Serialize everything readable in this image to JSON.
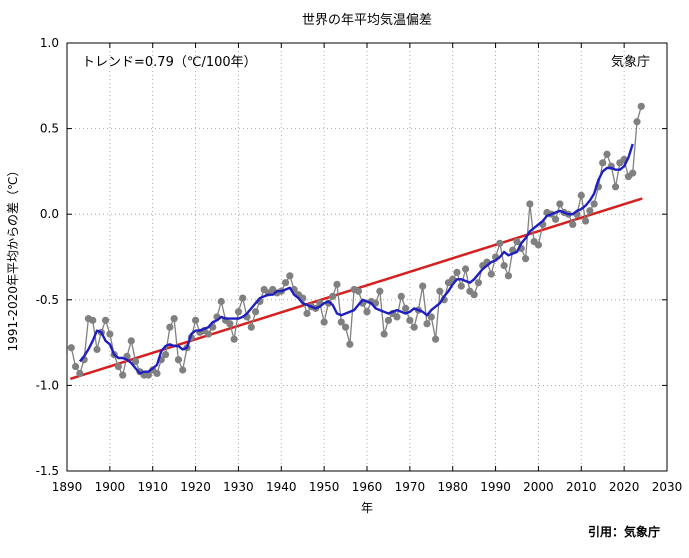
{
  "chart_data": {
    "type": "line",
    "title": "世界の年平均気温偏差",
    "xlabel": "年",
    "ylabel": "1991-2020年平均からの差（℃）",
    "xlim": [
      1890,
      2030
    ],
    "ylim": [
      -1.5,
      1.0
    ],
    "xticks": [
      "1890",
      "1900",
      "1910",
      "1920",
      "1930",
      "1940",
      "1950",
      "1960",
      "1970",
      "1980",
      "1990",
      "2000",
      "2010",
      "2020",
      "2030"
    ],
    "yticks": [
      "-1.5",
      "-1.0",
      "-0.5",
      "0.0",
      "0.5",
      "1.0"
    ],
    "trend_label": "トレンド=0.79（℃/100年）",
    "agency_label": "気象庁",
    "source_credit": "引用：気象庁",
    "grid": true,
    "colors": {
      "annual": "#808080",
      "moving_average": "#1f1fbf",
      "trend": "#d62020"
    },
    "trend": {
      "start": [
        1891,
        -0.96
      ],
      "end": [
        2024,
        0.09
      ]
    },
    "series": [
      {
        "name": "annual",
        "x": [
          1891,
          1892,
          1893,
          1894,
          1895,
          1896,
          1897,
          1898,
          1899,
          1900,
          1901,
          1902,
          1903,
          1904,
          1905,
          1906,
          1907,
          1908,
          1909,
          1910,
          1911,
          1912,
          1913,
          1914,
          1915,
          1916,
          1917,
          1918,
          1919,
          1920,
          1921,
          1922,
          1923,
          1924,
          1925,
          1926,
          1927,
          1928,
          1929,
          1930,
          1931,
          1932,
          1933,
          1934,
          1935,
          1936,
          1937,
          1938,
          1939,
          1940,
          1941,
          1942,
          1943,
          1944,
          1945,
          1946,
          1947,
          1948,
          1949,
          1950,
          1951,
          1952,
          1953,
          1954,
          1955,
          1956,
          1957,
          1958,
          1959,
          1960,
          1961,
          1962,
          1963,
          1964,
          1965,
          1966,
          1967,
          1968,
          1969,
          1970,
          1971,
          1972,
          1973,
          1974,
          1975,
          1976,
          1977,
          1978,
          1979,
          1980,
          1981,
          1982,
          1983,
          1984,
          1985,
          1986,
          1987,
          1988,
          1989,
          1990,
          1991,
          1992,
          1993,
          1994,
          1995,
          1996,
          1997,
          1998,
          1999,
          2000,
          2001,
          2002,
          2003,
          2004,
          2005,
          2006,
          2007,
          2008,
          2009,
          2010,
          2011,
          2012,
          2013,
          2014,
          2015,
          2016,
          2017,
          2018,
          2019,
          2020,
          2021,
          2022,
          2023,
          2024
        ],
        "values": [
          -0.78,
          -0.89,
          -0.93,
          -0.85,
          -0.61,
          -0.62,
          -0.79,
          -0.69,
          -0.62,
          -0.7,
          -0.82,
          -0.89,
          -0.94,
          -0.83,
          -0.74,
          -0.86,
          -0.92,
          -0.94,
          -0.94,
          -0.91,
          -0.93,
          -0.85,
          -0.82,
          -0.66,
          -0.61,
          -0.85,
          -0.91,
          -0.78,
          -0.72,
          -0.62,
          -0.69,
          -0.68,
          -0.7,
          -0.66,
          -0.6,
          -0.51,
          -0.62,
          -0.64,
          -0.73,
          -0.57,
          -0.49,
          -0.6,
          -0.66,
          -0.57,
          -0.51,
          -0.44,
          -0.46,
          -0.44,
          -0.46,
          -0.45,
          -0.4,
          -0.36,
          -0.44,
          -0.47,
          -0.49,
          -0.58,
          -0.54,
          -0.55,
          -0.52,
          -0.63,
          -0.52,
          -0.48,
          -0.41,
          -0.63,
          -0.66,
          -0.76,
          -0.44,
          -0.45,
          -0.52,
          -0.57,
          -0.51,
          -0.52,
          -0.45,
          -0.7,
          -0.62,
          -0.58,
          -0.6,
          -0.48,
          -0.55,
          -0.62,
          -0.66,
          -0.56,
          -0.42,
          -0.64,
          -0.6,
          -0.73,
          -0.45,
          -0.5,
          -0.4,
          -0.38,
          -0.34,
          -0.42,
          -0.32,
          -0.45,
          -0.47,
          -0.4,
          -0.3,
          -0.28,
          -0.35,
          -0.25,
          -0.17,
          -0.3,
          -0.36,
          -0.21,
          -0.16,
          -0.2,
          -0.26,
          0.06,
          -0.16,
          -0.18,
          -0.06,
          0.01,
          0.0,
          -0.03,
          0.06,
          0.01,
          0.0,
          -0.06,
          0.0,
          0.11,
          -0.04,
          0.02,
          0.06,
          0.16,
          0.3,
          0.35,
          0.28,
          0.16,
          0.3,
          0.32,
          0.22,
          0.24,
          0.54,
          0.63
        ]
      },
      {
        "name": "moving_average",
        "x": [
          1893,
          1894,
          1895,
          1896,
          1897,
          1898,
          1899,
          1900,
          1901,
          1902,
          1903,
          1904,
          1905,
          1906,
          1907,
          1908,
          1909,
          1910,
          1911,
          1912,
          1913,
          1914,
          1915,
          1916,
          1917,
          1918,
          1919,
          1920,
          1921,
          1922,
          1923,
          1924,
          1925,
          1926,
          1927,
          1928,
          1929,
          1930,
          1931,
          1932,
          1933,
          1934,
          1935,
          1936,
          1937,
          1938,
          1939,
          1940,
          1941,
          1942,
          1943,
          1944,
          1945,
          1946,
          1947,
          1948,
          1949,
          1950,
          1951,
          1952,
          1953,
          1954,
          1955,
          1956,
          1957,
          1958,
          1959,
          1960,
          1961,
          1962,
          1963,
          1964,
          1965,
          1966,
          1967,
          1968,
          1969,
          1970,
          1971,
          1972,
          1973,
          1974,
          1975,
          1976,
          1977,
          1978,
          1979,
          1980,
          1981,
          1982,
          1983,
          1984,
          1985,
          1986,
          1987,
          1988,
          1989,
          1990,
          1991,
          1992,
          1993,
          1994,
          1995,
          1996,
          1997,
          1998,
          1999,
          2000,
          2001,
          2002,
          2003,
          2004,
          2005,
          2006,
          2007,
          2008,
          2009,
          2010,
          2011,
          2012,
          2013,
          2014,
          2015,
          2016,
          2017,
          2018,
          2019,
          2020,
          2021,
          2022
        ],
        "values": [
          -0.86,
          -0.83,
          -0.79,
          -0.74,
          -0.68,
          -0.69,
          -0.74,
          -0.76,
          -0.82,
          -0.84,
          -0.84,
          -0.85,
          -0.87,
          -0.9,
          -0.93,
          -0.92,
          -0.92,
          -0.9,
          -0.88,
          -0.8,
          -0.77,
          -0.76,
          -0.77,
          -0.77,
          -0.79,
          -0.78,
          -0.7,
          -0.68,
          -0.68,
          -0.67,
          -0.66,
          -0.63,
          -0.62,
          -0.6,
          -0.61,
          -0.61,
          -0.61,
          -0.61,
          -0.6,
          -0.58,
          -0.55,
          -0.52,
          -0.49,
          -0.48,
          -0.47,
          -0.47,
          -0.45,
          -0.45,
          -0.44,
          -0.43,
          -0.47,
          -0.49,
          -0.52,
          -0.53,
          -0.54,
          -0.55,
          -0.54,
          -0.52,
          -0.51,
          -0.53,
          -0.58,
          -0.59,
          -0.58,
          -0.57,
          -0.56,
          -0.53,
          -0.5,
          -0.51,
          -0.52,
          -0.55,
          -0.56,
          -0.57,
          -0.58,
          -0.57,
          -0.56,
          -0.57,
          -0.58,
          -0.57,
          -0.55,
          -0.56,
          -0.57,
          -0.59,
          -0.56,
          -0.54,
          -0.52,
          -0.48,
          -0.45,
          -0.41,
          -0.38,
          -0.38,
          -0.39,
          -0.4,
          -0.38,
          -0.35,
          -0.32,
          -0.3,
          -0.28,
          -0.27,
          -0.25,
          -0.22,
          -0.24,
          -0.23,
          -0.22,
          -0.17,
          -0.14,
          -0.1,
          -0.08,
          -0.06,
          -0.04,
          -0.01,
          0.0,
          0.01,
          0.02,
          0.01,
          0.0,
          0.0,
          0.02,
          0.03,
          0.05,
          0.08,
          0.12,
          0.2,
          0.25,
          0.27,
          0.27,
          0.26,
          0.26,
          0.28,
          0.33,
          0.41
        ]
      }
    ]
  }
}
